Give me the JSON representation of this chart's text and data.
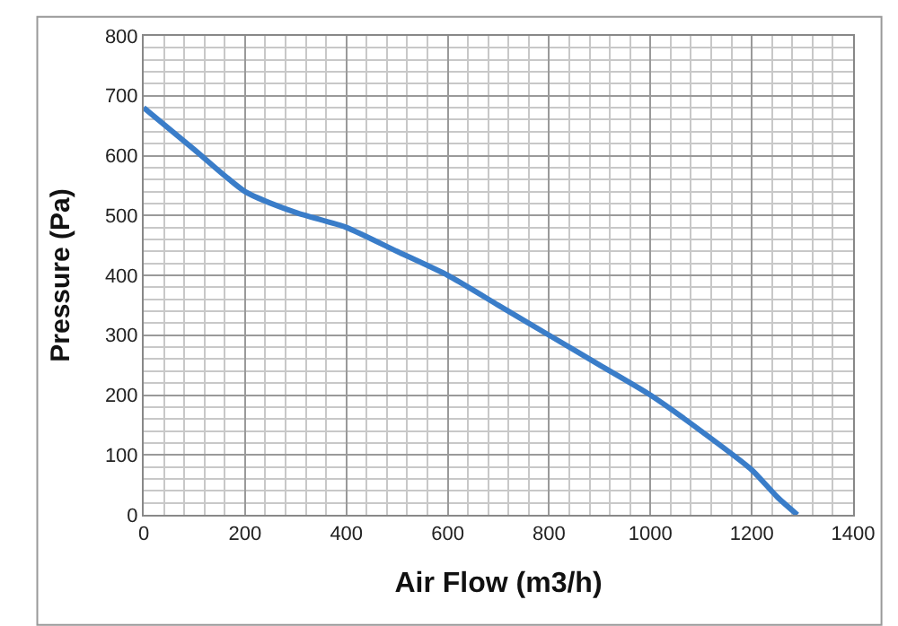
{
  "chart_data": {
    "type": "line",
    "xlabel": "Air Flow (m3/h)",
    "ylabel": "Pressure (Pa)",
    "x": [
      0,
      100,
      200,
      300,
      400,
      500,
      600,
      700,
      800,
      900,
      1000,
      1100,
      1200,
      1250,
      1290
    ],
    "series": [
      {
        "color": "#3a7dc9",
        "values": [
          680,
          610,
          540,
          505,
          480,
          440,
          400,
          350,
          300,
          250,
          200,
          140,
          75,
          30,
          0
        ]
      }
    ],
    "xlim": [
      0,
      1400
    ],
    "xticks": [
      0,
      200,
      400,
      600,
      800,
      1000,
      1200,
      1400
    ],
    "ylim": [
      0,
      800
    ],
    "yticks": [
      0,
      100,
      200,
      300,
      400,
      500,
      600,
      700,
      800
    ],
    "grid": true,
    "marker": "none",
    "line_style": "solid"
  }
}
